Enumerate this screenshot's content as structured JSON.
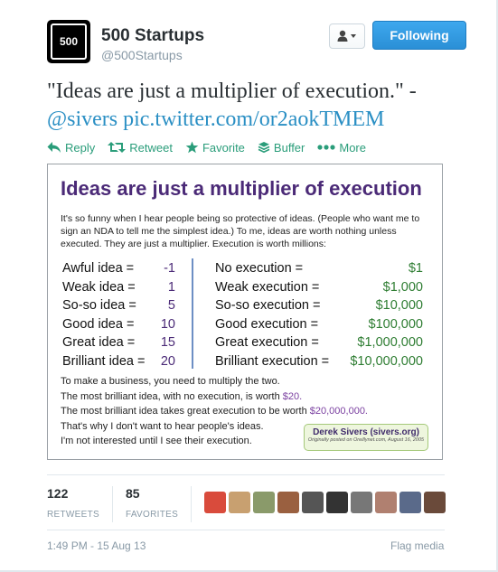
{
  "account": {
    "avatar_text": "500",
    "fullname": "500 Startups",
    "username": "@500Startups",
    "user_menu_icon": "user-dropdown-icon",
    "follow_label": "Following"
  },
  "tweet": {
    "text_part1": "\"Ideas are just a multiplier of execution.\" -",
    "mention": "@sivers",
    "pic_link": "pic.twitter.com/or2aokTMEM"
  },
  "actions": [
    {
      "label": "Reply",
      "icon": "reply-icon"
    },
    {
      "label": "Retweet",
      "icon": "retweet-icon"
    },
    {
      "label": "Favorite",
      "icon": "star-icon"
    },
    {
      "label": "Buffer",
      "icon": "buffer-icon"
    },
    {
      "label": "More",
      "icon": "more-icon"
    }
  ],
  "image": {
    "title": "Ideas are just a multiplier of execution",
    "intro": "It's so funny when I hear people being so protective of ideas. (People who want me to sign an NDA to tell me the simplest idea.) To me, ideas are worth nothing unless executed. They are just a multiplier. Execution is worth millions:",
    "ideas": [
      {
        "label": "Awful idea =",
        "value": "-1"
      },
      {
        "label": "Weak idea =",
        "value": "1"
      },
      {
        "label": "So-so idea =",
        "value": "5"
      },
      {
        "label": "Good idea =",
        "value": "10"
      },
      {
        "label": "Great idea =",
        "value": "15"
      },
      {
        "label": "Brilliant idea =",
        "value": "20"
      }
    ],
    "executions": [
      {
        "label": "No execution =",
        "value": "$1"
      },
      {
        "label": "Weak execution =",
        "value": "$1,000"
      },
      {
        "label": "So-so execution =",
        "value": "$10,000"
      },
      {
        "label": "Good execution =",
        "value": "$100,000"
      },
      {
        "label": "Great execution =",
        "value": "$1,000,000"
      },
      {
        "label": "Brilliant execution =",
        "value": "$10,000,000"
      }
    ],
    "line1": "To make a business, you need to multiply the two.",
    "line2_pre": "The most brilliant idea, with no execution, is worth ",
    "line2_val": "$20.",
    "line3_pre": "The most brilliant idea takes great execution to be worth ",
    "line3_val": "$20,000,000.",
    "line4": "That's why I don't want to hear people's ideas.",
    "line5": "I'm not interested until I see their execution.",
    "credit_name": "Derek Sivers (sivers.org)",
    "credit_note": "Originally posted on Oreillynet.com, August 16, 2005"
  },
  "stats": {
    "retweets_count": "122",
    "retweets_label": "RETWEETS",
    "favorites_count": "85",
    "favorites_label": "FAVORITES"
  },
  "faces": [
    "#d94b3c",
    "#c8a070",
    "#8a9a6a",
    "#9a6040",
    "#555555",
    "#333333",
    "#777777",
    "#b08070",
    "#5a6a8a",
    "#6a4a3a"
  ],
  "footer": {
    "timestamp": "1:49 PM - 15 Aug 13",
    "flag": "Flag media"
  }
}
